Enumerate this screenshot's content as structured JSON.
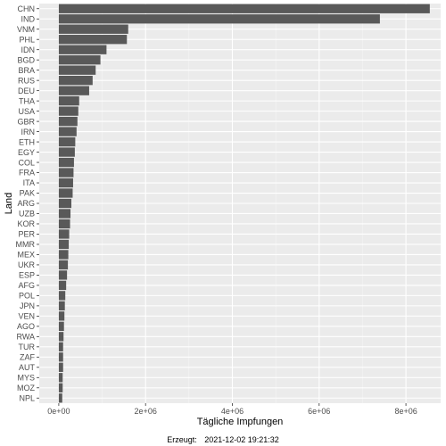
{
  "chart_data": {
    "type": "bar",
    "orientation": "horizontal",
    "xlabel": "Tägliche Impfungen",
    "ylabel": "Land",
    "xlim": [
      -450000,
      8800000
    ],
    "x_ticks": [
      0,
      2000000,
      4000000,
      6000000,
      8000000
    ],
    "x_tick_labels": [
      "0e+00",
      "2e+06",
      "4e+06",
      "6e+06",
      "8e+06"
    ],
    "grid": true,
    "categories": [
      "CHN",
      "IND",
      "VNM",
      "PHL",
      "IDN",
      "BGD",
      "BRA",
      "RUS",
      "DEU",
      "THA",
      "USA",
      "GBR",
      "IRN",
      "ETH",
      "EGY",
      "COL",
      "FRA",
      "ITA",
      "PAK",
      "ARG",
      "UZB",
      "KOR",
      "PER",
      "MMR",
      "MEX",
      "UKR",
      "ESP",
      "AFG",
      "POL",
      "JPN",
      "VEN",
      "AGO",
      "RWA",
      "TUR",
      "ZAF",
      "AUT",
      "MYS",
      "MOZ",
      "NPL"
    ],
    "values": [
      8550000,
      7400000,
      1600000,
      1570000,
      1100000,
      960000,
      850000,
      780000,
      700000,
      470000,
      450000,
      430000,
      410000,
      380000,
      370000,
      350000,
      340000,
      330000,
      320000,
      290000,
      270000,
      260000,
      240000,
      230000,
      220000,
      210000,
      190000,
      170000,
      150000,
      140000,
      130000,
      120000,
      110000,
      100000,
      100000,
      100000,
      90000,
      90000,
      80000
    ],
    "colors": {
      "bar": "#595959",
      "panel": "#ebebeb",
      "grid_major": "#ffffff",
      "grid_minor": "#f5f5f5"
    }
  },
  "caption": {
    "label": "Erzeugt:",
    "timestamp": "2021-12-02 19:21:32"
  }
}
